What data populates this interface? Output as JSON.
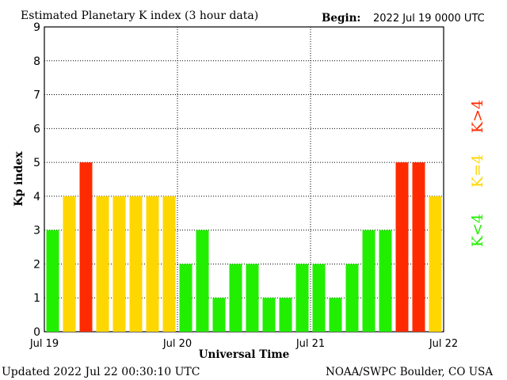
{
  "chart_data": {
    "type": "bar",
    "title": "Estimated Planetary K index (3 hour data)",
    "begin_label": "Begin:",
    "begin_value": "2022 Jul 19 0000 UTC",
    "xlabel": "Universal Time",
    "ylabel": "Kp index",
    "ylim": [
      0,
      9
    ],
    "yticks": [
      "0",
      "1",
      "2",
      "3",
      "4",
      "5",
      "6",
      "7",
      "8",
      "9"
    ],
    "xticks": [
      "Jul 19",
      "Jul 20",
      "Jul 21",
      "Jul 22"
    ],
    "grid": true,
    "values": [
      3,
      4,
      5,
      4,
      4,
      4,
      4,
      4,
      2,
      3,
      1,
      2,
      2,
      1,
      1,
      2,
      2,
      1,
      2,
      3,
      3,
      5,
      5,
      4
    ],
    "legend": {
      "placement": "right",
      "entries": [
        {
          "label": "K<4",
          "color": "#22ee00"
        },
        {
          "label": "K=4",
          "color": "#ffd700"
        },
        {
          "label": "K>4",
          "color": "#ff2a00"
        }
      ]
    }
  },
  "footer": {
    "updated": "Updated 2022 Jul 22 00:30:10 UTC",
    "credit": "NOAA/SWPC Boulder, CO USA"
  }
}
